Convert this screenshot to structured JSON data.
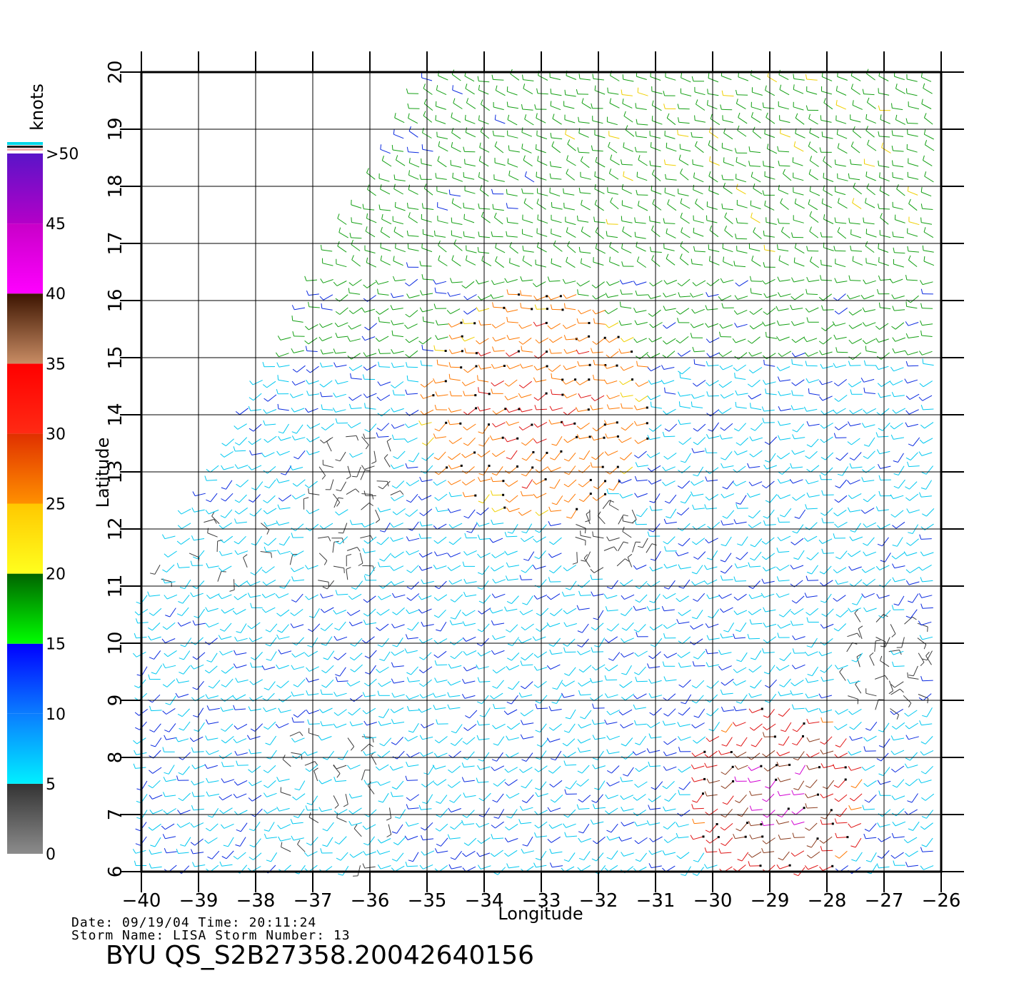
{
  "chart_data": {
    "type": "wind-barb-map",
    "xlabel": "Longitude",
    "ylabel": "Latitude",
    "xlim": [
      -40,
      -26
    ],
    "ylim": [
      6,
      20
    ],
    "x_ticks": [
      -40,
      -39,
      -38,
      -37,
      -36,
      -35,
      -34,
      -33,
      -32,
      -31,
      -30,
      -29,
      -28,
      -27,
      -26
    ],
    "y_ticks": [
      6,
      7,
      8,
      9,
      10,
      11,
      12,
      13,
      14,
      15,
      16,
      17,
      18,
      19,
      20
    ],
    "x_tick_labels": [
      "−40",
      "−39",
      "−38",
      "−37",
      "−36",
      "−35",
      "−34",
      "−33",
      "−32",
      "−31",
      "−30",
      "−29",
      "−28",
      "−27",
      "−26"
    ],
    "y_tick_labels": [
      "6",
      "7",
      "8",
      "9",
      "10",
      "11",
      "12",
      "13",
      "14",
      "15",
      "16",
      "17",
      "18",
      "19",
      "20"
    ],
    "grid": true,
    "colorbar": {
      "title": "knots",
      "labels": [
        "0",
        "5",
        "10",
        "15",
        "20",
        "25",
        "30",
        "35",
        "40",
        "45",
        ">50"
      ],
      "bins": [
        {
          "from": 0,
          "to": 5,
          "top": "#333333",
          "bottom": "#8c8c8c"
        },
        {
          "from": 5,
          "to": 10,
          "top": "#0a7dff",
          "bottom": "#00f0ff"
        },
        {
          "from": 10,
          "to": 15,
          "top": "#0000ff",
          "bottom": "#0a7dff"
        },
        {
          "from": 15,
          "to": 20,
          "top": "#006400",
          "bottom": "#00ff00"
        },
        {
          "from": 20,
          "to": 25,
          "top": "#ffc800",
          "bottom": "#ffff1e"
        },
        {
          "from": 25,
          "to": 30,
          "top": "#e03000",
          "bottom": "#ff9000"
        },
        {
          "from": 30,
          "to": 35,
          "top": "#ff0000",
          "bottom": "#ff2a14"
        },
        {
          "from": 35,
          "to": 40,
          "top": "#3c1400",
          "bottom": "#c88c64"
        },
        {
          "from": 40,
          "to": 45,
          "top": "#c800c8",
          "bottom": "#ff00ff"
        },
        {
          "from": 45,
          "to": 50,
          "top": "#5a14c8",
          "bottom": "#b400c8"
        }
      ]
    },
    "speed_colors": {
      "0-5": "#3c3c3c",
      "5-10": "#00c8f0",
      "10-15": "#0a2ae0",
      "15-20": "#14a014",
      "20-25": "#f0d000",
      "25-30": "#ff7800",
      "30-35": "#e01414",
      "35-40": "#8c3c1e",
      "40-45": "#d200d2"
    }
  },
  "meta": {
    "date_line": "Date: 09/19/04   Time: 20:11:24",
    "storm_line": "Storm Name: LISA   Storm Number: 13",
    "product": "BYU QS_S2B27358.20042640156"
  }
}
